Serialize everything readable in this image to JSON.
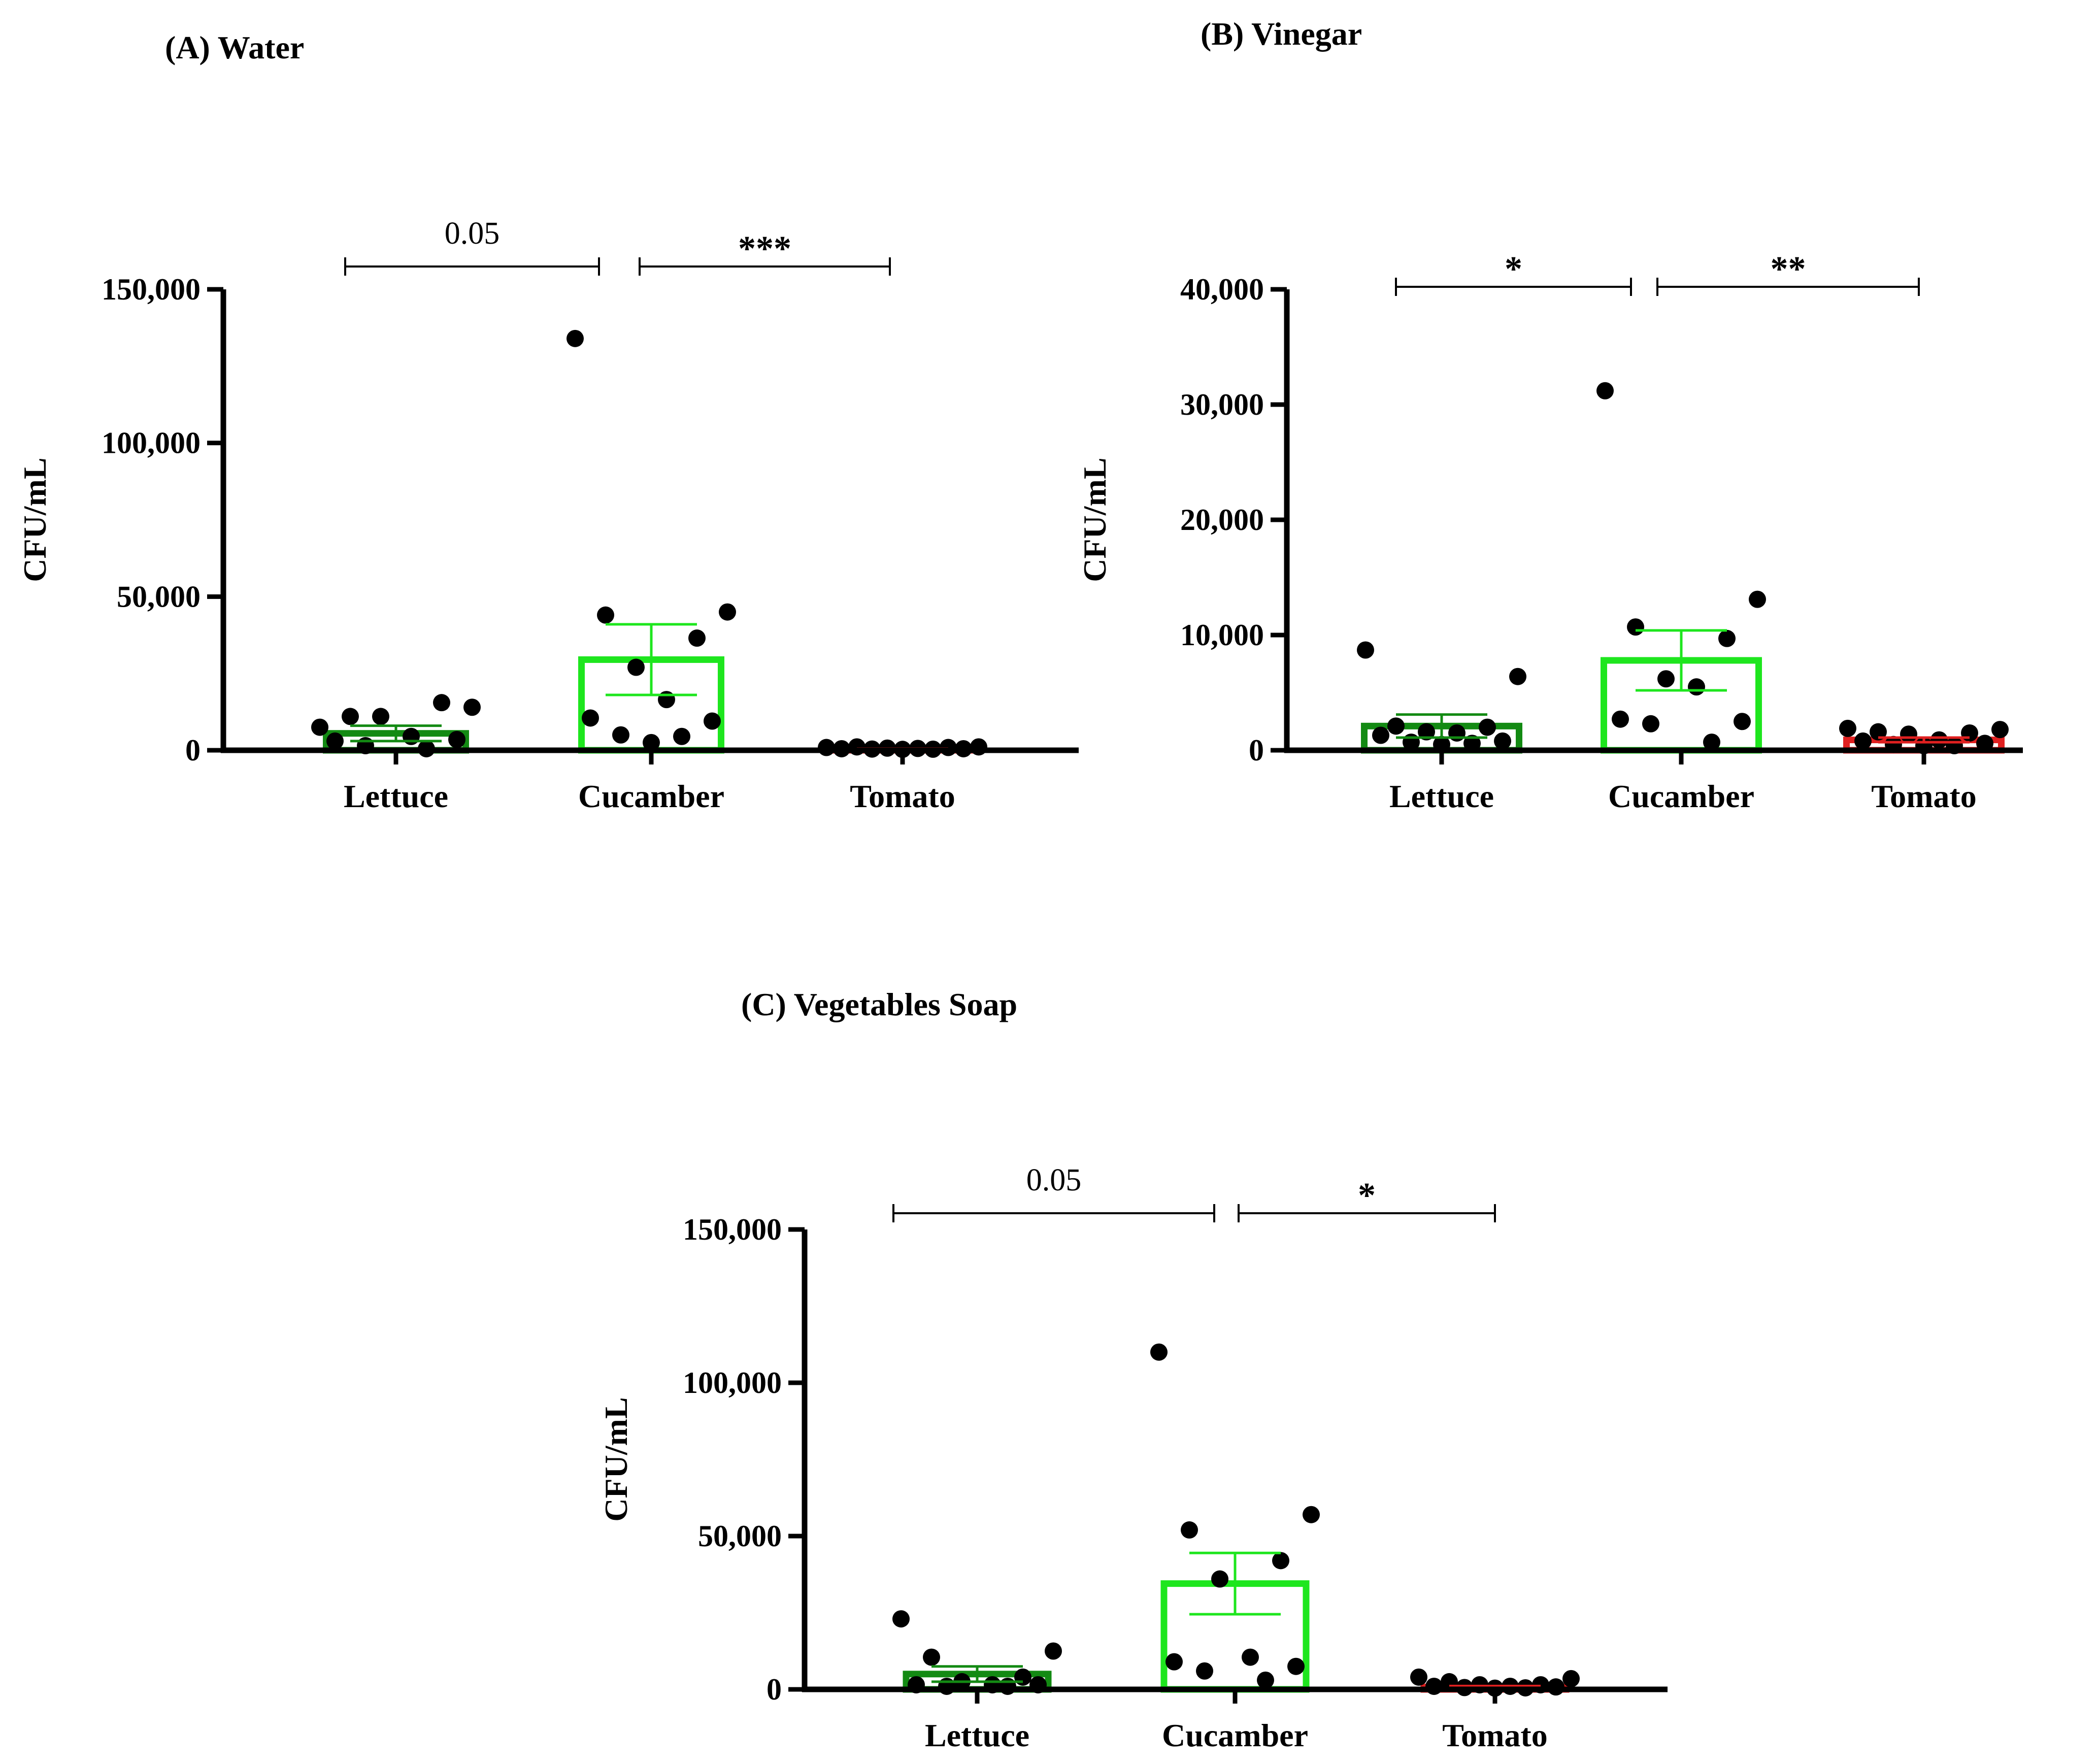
{
  "chart_data": [
    {
      "id": "A",
      "type": "bar",
      "title": "(A) Water",
      "ylabel": "CFU/mL",
      "xlabel": "",
      "ylim": [
        0,
        150000
      ],
      "yticks": [
        0,
        50000,
        100000,
        150000
      ],
      "ytick_labels": [
        "0",
        "50,000",
        "100,000",
        "150,000"
      ],
      "categories": [
        "Lettuce",
        "Cucamber",
        "Tomato"
      ],
      "bar_colors": [
        "#138a13",
        "#1ee61e",
        "#e02020"
      ],
      "values": [
        5500,
        29500,
        400
      ],
      "errors": [
        2500,
        11500,
        150
      ],
      "points": [
        [
          7500,
          14000,
          11000,
          15500,
          11000,
          4500,
          3000,
          3500,
          1500,
          500
        ],
        [
          134000,
          45000,
          44000,
          36500,
          27000,
          16500,
          10500,
          9500,
          5000,
          4500,
          2500
        ],
        [
          900,
          1100,
          1100,
          900,
          700,
          600,
          500,
          500,
          400,
          350,
          300
        ]
      ],
      "comparisons": [
        {
          "from": 0,
          "to": 1,
          "label": "0.05",
          "style": "num"
        },
        {
          "from": 1,
          "to": 2,
          "label": "***",
          "style": "star"
        }
      ]
    },
    {
      "id": "B",
      "type": "bar",
      "title": "(B) Vinegar",
      "ylabel": "CFU/mL",
      "xlabel": "",
      "ylim": [
        0,
        40000
      ],
      "yticks": [
        0,
        10000,
        20000,
        30000,
        40000
      ],
      "ytick_labels": [
        "0",
        "10,000",
        "20,000",
        "30,000",
        "40,000"
      ],
      "categories": [
        "Lettuce",
        "Cucamber",
        "Tomato"
      ],
      "bar_colors": [
        "#138a13",
        "#1ee61e",
        "#e02020"
      ],
      "values": [
        2100,
        7800,
        900
      ],
      "errors": [
        1000,
        2600,
        200
      ],
      "points": [
        [
          8700,
          6400,
          2100,
          2000,
          1600,
          1500,
          1300,
          800,
          700,
          600,
          500
        ],
        [
          31200,
          13100,
          10700,
          9700,
          6200,
          5500,
          2700,
          2500,
          2300,
          700
        ],
        [
          1900,
          1800,
          1600,
          1500,
          1400,
          900,
          800,
          600,
          500,
          400,
          400
        ]
      ],
      "comparisons": [
        {
          "from": 0,
          "to": 1,
          "label": "*",
          "style": "star"
        },
        {
          "from": 1,
          "to": 2,
          "label": "**",
          "style": "star"
        }
      ]
    },
    {
      "id": "C",
      "type": "bar",
      "title": "(C) Vegetables Soap",
      "ylabel": "CFU/mL",
      "xlabel": "",
      "ylim": [
        0,
        150000
      ],
      "yticks": [
        0,
        50000,
        100000,
        150000
      ],
      "ytick_labels": [
        "0",
        "50,000",
        "100,000",
        "150,000"
      ],
      "categories": [
        "Lettuce",
        "Cucamber",
        "Tomato"
      ],
      "bar_colors": [
        "#138a13",
        "#1ee61e",
        "#e02020"
      ],
      "values": [
        5000,
        34500,
        800
      ],
      "errors": [
        2500,
        10000,
        300
      ],
      "points": [
        [
          23000,
          12500,
          10500,
          4000,
          2500,
          1500,
          1500,
          1500,
          1000,
          1000
        ],
        [
          110000,
          57000,
          52000,
          42000,
          36000,
          10500,
          9000,
          7500,
          6000,
          3000
        ],
        [
          4000,
          3500,
          2500,
          1500,
          1500,
          1000,
          1000,
          800,
          600,
          500,
          400
        ]
      ],
      "comparisons": [
        {
          "from": 0,
          "to": 1,
          "label": "0.05",
          "style": "num"
        },
        {
          "from": 1,
          "to": 2,
          "label": "*",
          "style": "star"
        }
      ]
    }
  ]
}
